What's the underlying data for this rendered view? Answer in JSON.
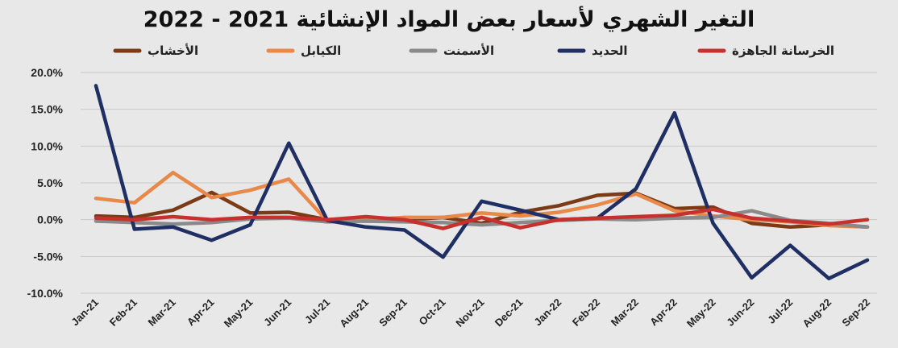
{
  "chart_data": {
    "type": "line",
    "title": "التغير الشهري لأسعار بعض المواد الإنشائية 2021 - 2022",
    "categories": [
      "Jan-21",
      "Feb-21",
      "Mar-21",
      "Apr-21",
      "May-21",
      "Jun-21",
      "Jul-21",
      "Aug-21",
      "Sep-21",
      "Oct-21",
      "Nov-21",
      "Dec-21",
      "Jan-22",
      "Feb-22",
      "Mar-22",
      "Apr-22",
      "May-22",
      "Jun-22",
      "Jul-22",
      "Aug-22",
      "Sep-22"
    ],
    "ylim": [
      -10,
      20
    ],
    "yticks": [
      20,
      15,
      10,
      5,
      0,
      -5,
      -10
    ],
    "ytick_labels": [
      "20.0%",
      "15.0%",
      "10.0%",
      "5.0%",
      "0.0%",
      "-5.0%",
      "-10.0%"
    ],
    "grid": true,
    "legend_position": "top",
    "series": [
      {
        "name": "الأخشاب",
        "color": "#7a3b16",
        "values": [
          0.5,
          0.3,
          1.3,
          3.7,
          0.9,
          1.0,
          0.0,
          0.2,
          0.0,
          0.3,
          -0.5,
          1.0,
          1.9,
          3.3,
          3.6,
          1.5,
          1.7,
          -0.5,
          -1.0,
          -0.7,
          -1.0
        ]
      },
      {
        "name": "الكيابل",
        "color": "#e8894a",
        "values": [
          2.9,
          2.3,
          6.4,
          3.0,
          4.0,
          5.5,
          -0.2,
          0.0,
          0.3,
          0.3,
          0.9,
          0.5,
          1.0,
          2.0,
          3.5,
          1.2,
          0.5,
          0.0,
          -0.3,
          -0.8,
          -1.0
        ]
      },
      {
        "name": "الأسمنت",
        "color": "#8a8a8a",
        "values": [
          -0.2,
          -0.4,
          -0.6,
          -0.4,
          0.1,
          0.2,
          -0.3,
          -0.2,
          -0.3,
          -0.4,
          -0.7,
          -0.4,
          -0.1,
          0.1,
          0.0,
          0.2,
          0.3,
          1.2,
          -0.1,
          -0.5,
          -1.0
        ]
      },
      {
        "name": "الحديد",
        "color": "#1f2f63",
        "values": [
          18.2,
          -1.3,
          -1.0,
          -2.8,
          -0.7,
          10.4,
          -0.1,
          -1.0,
          -1.4,
          -5.1,
          2.5,
          1.3,
          0.0,
          0.2,
          4.2,
          14.5,
          -0.5,
          -7.9,
          -3.5,
          -8.0,
          -5.5
        ]
      },
      {
        "name": "الخرسانة الجاهزة",
        "color": "#c8302e",
        "values": [
          0.2,
          0.0,
          0.4,
          0.0,
          0.3,
          0.3,
          0.0,
          0.4,
          0.0,
          -1.2,
          0.3,
          -1.1,
          0.0,
          0.2,
          0.4,
          0.6,
          1.4,
          0.2,
          -0.2,
          -0.6,
          0.0
        ]
      }
    ]
  }
}
